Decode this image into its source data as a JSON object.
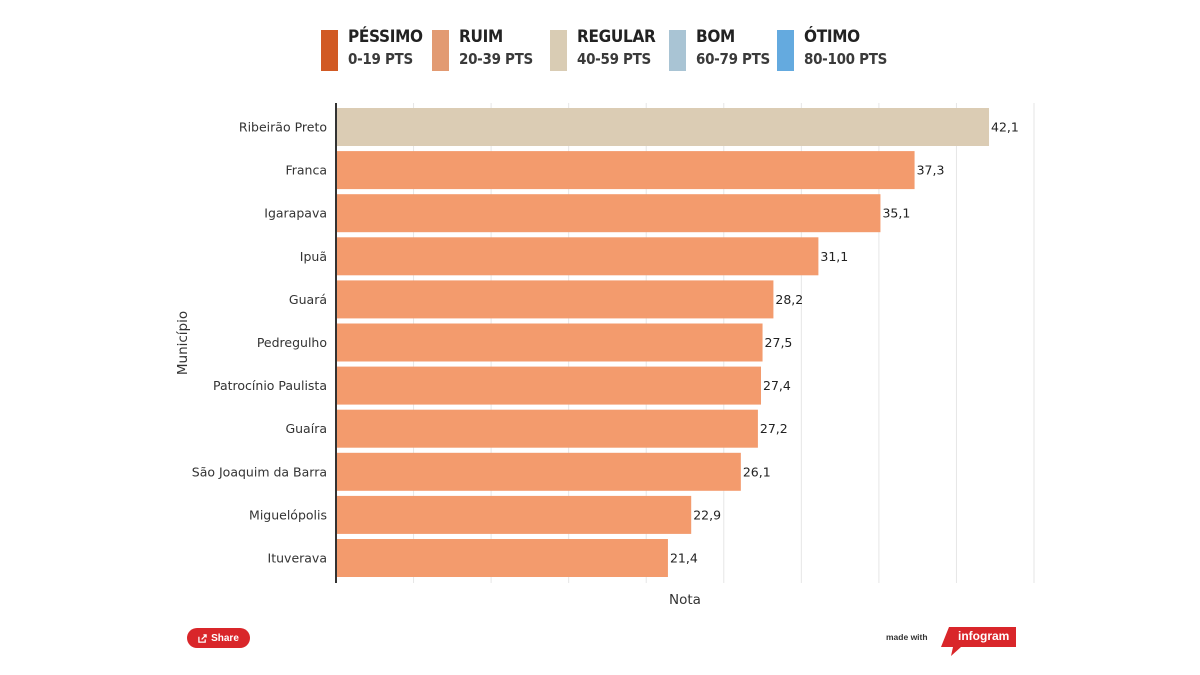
{
  "legend": [
    {
      "title": "PÉSSIMO",
      "range": "0-19 PTS",
      "color": "#d15a24"
    },
    {
      "title": "RUIM",
      "range": "20-39 PTS",
      "color": "#e29a72"
    },
    {
      "title": "REGULAR",
      "range": "40-59 PTS",
      "color": "#d9ccb4"
    },
    {
      "title": "BOM",
      "range": "60-79 PTS",
      "color": "#a9c4d4"
    },
    {
      "title": "ÓTIMO",
      "range": "80-100 PTS",
      "color": "#64aadf"
    }
  ],
  "chart_data": {
    "type": "bar",
    "orientation": "horizontal",
    "categories": [
      "Ribeirão Preto",
      "Franca",
      "Igarapava",
      "Ipuã",
      "Guará",
      "Pedregulho",
      "Patrocínio Paulista",
      "Guaíra",
      "São Joaquim da Barra",
      "Miguelópolis",
      "Ituverava"
    ],
    "values": [
      42.1,
      37.3,
      35.1,
      31.1,
      28.2,
      27.5,
      27.4,
      27.2,
      26.1,
      22.9,
      21.4
    ],
    "value_labels": [
      "42,1",
      "37,3",
      "35,1",
      "31,1",
      "28,2",
      "27,5",
      "27,4",
      "27,2",
      "26,1",
      "22,9",
      "21,4"
    ],
    "bar_colors": [
      "#dbccb4",
      "#f39b6d",
      "#f39b6d",
      "#f39b6d",
      "#f39b6d",
      "#f39b6d",
      "#f39b6d",
      "#f39b6d",
      "#f39b6d",
      "#f39b6d",
      "#f39b6d"
    ],
    "xlabel": "Nota",
    "ylabel": "Município",
    "xlim": [
      0,
      45
    ],
    "grid": true
  },
  "footer": {
    "share_label": "Share",
    "made_with": "made with",
    "brand": "infogram",
    "brand_color": "#d9262a"
  }
}
